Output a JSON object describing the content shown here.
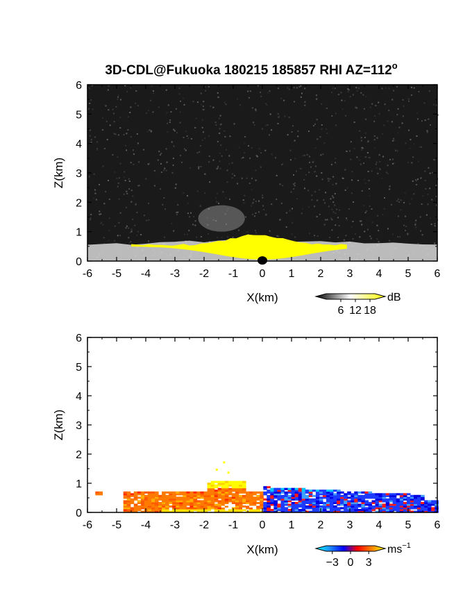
{
  "chart_data": [
    {
      "type": "heatmap",
      "panel": "reflectivity",
      "title": "3D-CDL@Fukuoka 180215 185857 RHI AZ=112",
      "title_superscript": "o",
      "xlabel": "X(km)",
      "ylabel": "Z(km)",
      "xlim": [
        -6,
        6
      ],
      "ylim": [
        0,
        6
      ],
      "xticks": [
        "-6",
        "-5",
        "-4",
        "-3",
        "-2",
        "-1",
        "0",
        "1",
        "2",
        "3",
        "4",
        "5",
        "6"
      ],
      "yticks": [
        "0",
        "1",
        "2",
        "3",
        "4",
        "5",
        "6"
      ],
      "background": "dark noise",
      "colorbar": {
        "unit": "dB",
        "ticks": [
          "6",
          "12",
          "18"
        ],
        "range": [
          0,
          20
        ],
        "colors": [
          "#000000",
          "#ffffff",
          "#ffff00"
        ]
      },
      "features": [
        {
          "name": "strong-echo-layer",
          "x_range": [
            -4.5,
            2.9
          ],
          "z_top": 0.9,
          "value": 18,
          "color": "#ffff00"
        },
        {
          "name": "weak-echo-layer",
          "x_range": [
            -6,
            6
          ],
          "z_top": 0.7,
          "value": 12,
          "color": "#d8d8d8"
        },
        {
          "name": "elevated-echo",
          "x_range": [
            -2.2,
            -0.6
          ],
          "z_range": [
            1.0,
            1.9
          ],
          "value": 8,
          "color": "#8a8a8a"
        }
      ]
    },
    {
      "type": "heatmap",
      "panel": "doppler-velocity",
      "xlabel": "X(km)",
      "ylabel": "Z(km)",
      "xlim": [
        -6,
        6
      ],
      "ylim": [
        0,
        6
      ],
      "xticks": [
        "-6",
        "-5",
        "-4",
        "-3",
        "-2",
        "-1",
        "0",
        "1",
        "2",
        "3",
        "4",
        "5",
        "6"
      ],
      "yticks": [
        "0",
        "1",
        "2",
        "3",
        "4",
        "5",
        "6"
      ],
      "colorbar": {
        "unit": "ms",
        "unit_superscript": "−1",
        "ticks": [
          "−3",
          "0",
          "3"
        ],
        "range": [
          -4,
          4
        ],
        "colors": [
          "#00ffff",
          "#1e90ff",
          "#0000ff",
          "#ff0000",
          "#ff8000",
          "#ffff00"
        ]
      },
      "features": [
        {
          "name": "positive-velocity-region",
          "x_range": [
            -6,
            0
          ],
          "z_top": 0.65,
          "value": 2,
          "color": "#ff7a00"
        },
        {
          "name": "cloud-top-region",
          "x_range": [
            -2,
            -0.6
          ],
          "z_range": [
            0.8,
            1.2
          ],
          "value": 3.5,
          "color": "#ffff00"
        },
        {
          "name": "negative-velocity-region",
          "x_range": [
            0,
            6
          ],
          "z_top": 0.85,
          "value": -2,
          "color": "#1e3cff"
        }
      ]
    }
  ]
}
